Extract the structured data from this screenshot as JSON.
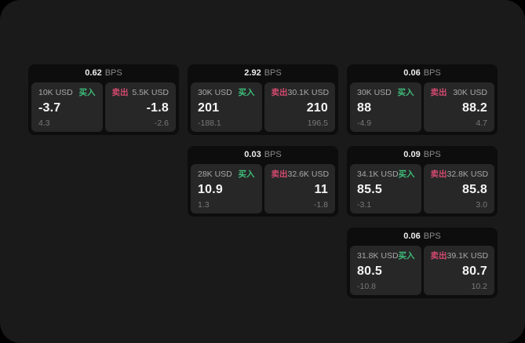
{
  "labels": {
    "bps_unit": "BPS",
    "buy": "买入",
    "sell": "卖出"
  },
  "colors": {
    "window_bg": "#1a1a1b",
    "card_bg": "#0d0d0e",
    "panel_bg": "#272728",
    "buy": "#3ebd78",
    "sell": "#d24a6e"
  },
  "cards": [
    {
      "bps": "0.62",
      "buy": {
        "amount": "10K USD",
        "price": "-3.7",
        "delta": "4.3"
      },
      "sell": {
        "amount": "5.5K USD",
        "price": "-1.8",
        "delta": "-2.6"
      }
    },
    {
      "bps": "2.92",
      "buy": {
        "amount": "30K USD",
        "price": "201",
        "delta": "-188.1"
      },
      "sell": {
        "amount": "30.1K USD",
        "price": "210",
        "delta": "196.5"
      }
    },
    {
      "bps": "0.06",
      "buy": {
        "amount": "30K USD",
        "price": "88",
        "delta": "-4.9"
      },
      "sell": {
        "amount": "30K USD",
        "price": "88.2",
        "delta": "4.7"
      }
    },
    {
      "bps": "0.03",
      "buy": {
        "amount": "28K USD",
        "price": "10.9",
        "delta": "1.3"
      },
      "sell": {
        "amount": "32.6K USD",
        "price": "11",
        "delta": "-1.8"
      }
    },
    {
      "bps": "0.09",
      "buy": {
        "amount": "34.1K USD",
        "price": "85.5",
        "delta": "-3.1"
      },
      "sell": {
        "amount": "32.8K USD",
        "price": "85.8",
        "delta": "3.0"
      }
    },
    {
      "bps": "0.06",
      "buy": {
        "amount": "31.8K USD",
        "price": "80.5",
        "delta": "-10.8"
      },
      "sell": {
        "amount": "39.1K USD",
        "price": "80.7",
        "delta": "10.2"
      }
    }
  ]
}
